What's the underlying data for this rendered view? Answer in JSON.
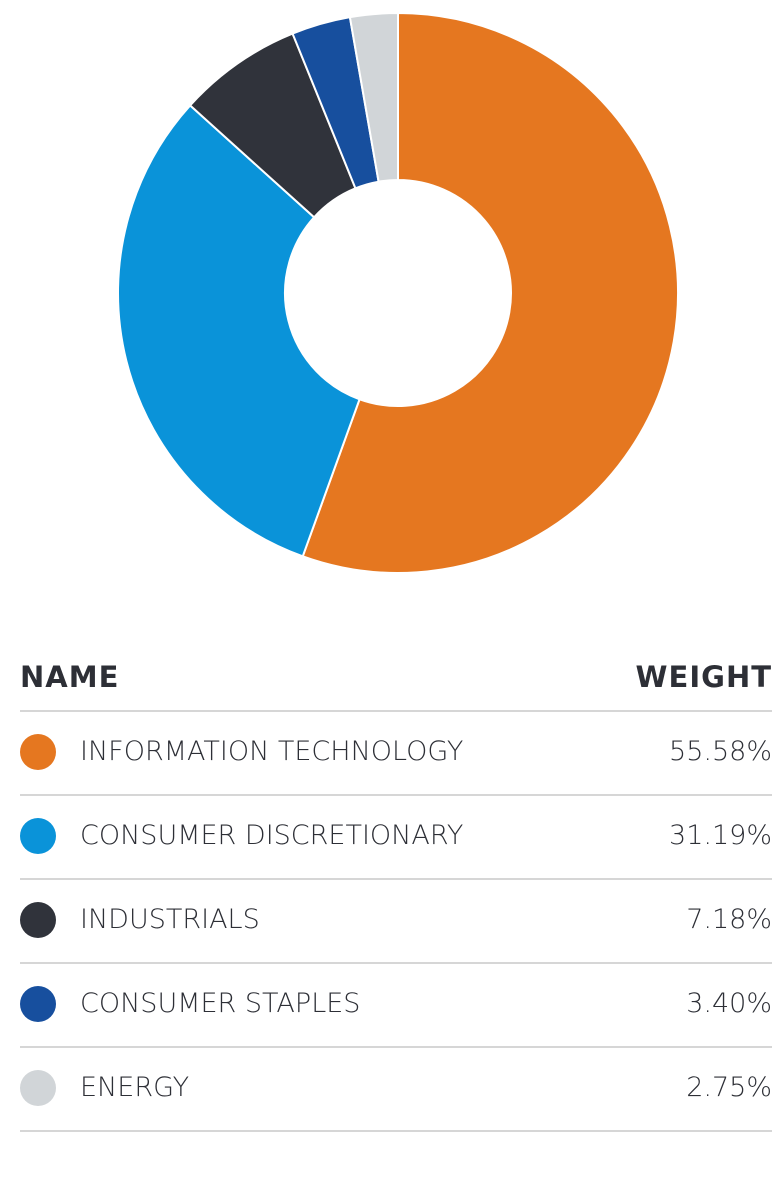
{
  "chart_data": {
    "type": "donut",
    "categories": [
      "INFORMATION TECHNOLOGY",
      "CONSUMER DISCRETIONARY",
      "INDUSTRIALS",
      "CONSUMER STAPLES",
      "ENERGY"
    ],
    "values": [
      55.58,
      31.19,
      7.18,
      3.4,
      2.75
    ],
    "value_labels": [
      "55.58%",
      "31.19%",
      "7.18%",
      "3.40%",
      "2.75%"
    ],
    "colors": [
      "#e57720",
      "#0a93d9",
      "#30333b",
      "#174f9e",
      "#d1d5d8"
    ],
    "table_headers": [
      "NAME",
      "WEIGHT"
    ]
  }
}
